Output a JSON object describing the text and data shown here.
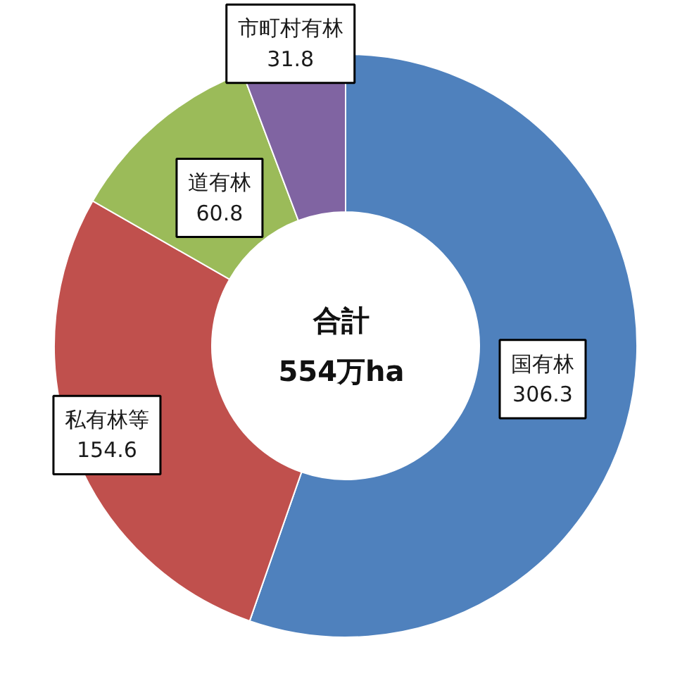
{
  "chart_data": {
    "type": "donut",
    "categories": [
      "国有林",
      "私有林等",
      "道有林",
      "市町村有林"
    ],
    "values": [
      306.3,
      154.6,
      60.8,
      31.8
    ],
    "colors": [
      "#4f81bd",
      "#c0504d",
      "#9bbb59",
      "#8064a2"
    ],
    "data_labels": true,
    "annotations": [
      "合計\n554万ha"
    ]
  }
}
